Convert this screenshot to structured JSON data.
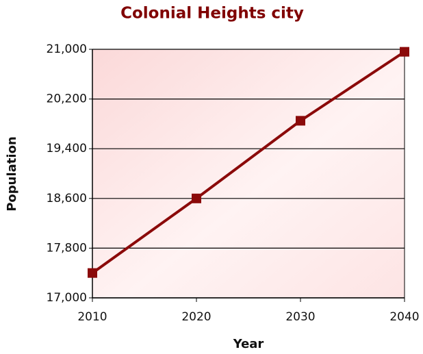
{
  "chart_data": {
    "type": "line",
    "title": "Colonial Heights city",
    "xlabel": "Year",
    "ylabel": "Population",
    "x": [
      2010,
      2020,
      2030,
      2040
    ],
    "series": [
      {
        "name": "Population",
        "color": "#8b0a0a",
        "values": [
          17400,
          18600,
          19850,
          20960
        ]
      }
    ],
    "xlim": [
      2010,
      2040
    ],
    "xticks": [
      2010,
      2020,
      2030,
      2040
    ],
    "ylim": [
      17000,
      21000
    ],
    "yticks": [
      {
        "value": 17000,
        "label": "17,000"
      },
      {
        "value": 17800,
        "label": "17,800"
      },
      {
        "value": 18600,
        "label": "18,600"
      },
      {
        "value": 19400,
        "label": "19,400"
      },
      {
        "value": 20200,
        "label": "20,200"
      },
      {
        "value": 21000,
        "label": "21,000"
      }
    ],
    "grid": true
  }
}
